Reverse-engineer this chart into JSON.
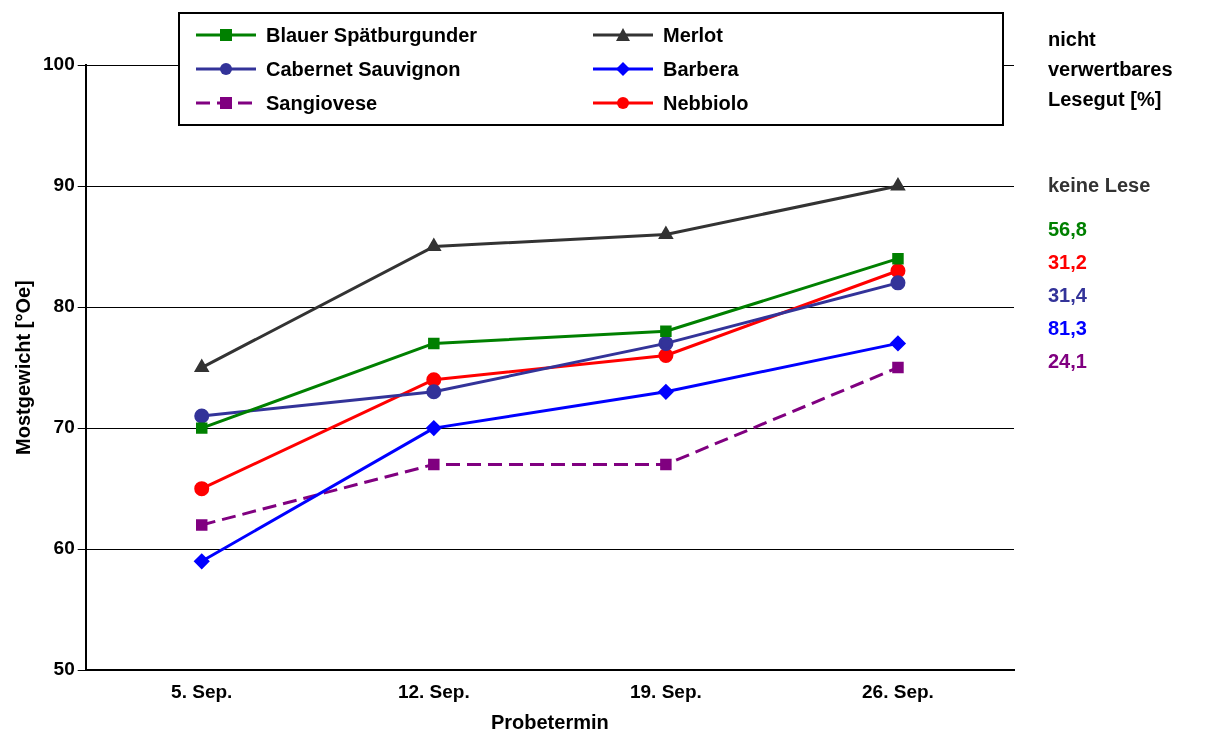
{
  "chart_data": {
    "type": "line",
    "xlabel": "Probetermin",
    "ylabel": "Mostgewicht [°Oe]",
    "categories": [
      "5. Sep.",
      "12. Sep.",
      "19. Sep.",
      "26. Sep."
    ],
    "ylim": [
      50,
      100
    ],
    "yticks": [
      50,
      60,
      70,
      80,
      90,
      100
    ],
    "grid": "y",
    "legend": "top",
    "series": [
      {
        "name": "Blauer Spätburgunder",
        "color": "#008000",
        "marker": "square",
        "values": [
          70,
          77,
          78,
          84
        ]
      },
      {
        "name": "Merlot",
        "color": "#333333",
        "marker": "triangle",
        "values": [
          75,
          85,
          86,
          90
        ]
      },
      {
        "name": "Cabernet Sauvignon",
        "color": "#333399",
        "marker": "circle",
        "values": [
          71,
          73,
          77,
          82
        ]
      },
      {
        "name": "Barbera",
        "color": "#0000ff",
        "marker": "diamond",
        "values": [
          59,
          70,
          73,
          77
        ]
      },
      {
        "name": "Sangiovese",
        "color": "#800080",
        "marker": "square",
        "line_style": "dashed",
        "values": [
          62,
          67,
          67,
          75
        ]
      },
      {
        "name": "Nebbiolo",
        "color": "#ff0000",
        "marker": "circle",
        "values": [
          65,
          74,
          76,
          83
        ]
      }
    ],
    "annotations": [
      "nicht verwertbares Lesegut [%]",
      "keine Lese",
      "56,8",
      "31,2",
      "31,4",
      "81,3",
      "24,1"
    ]
  }
}
